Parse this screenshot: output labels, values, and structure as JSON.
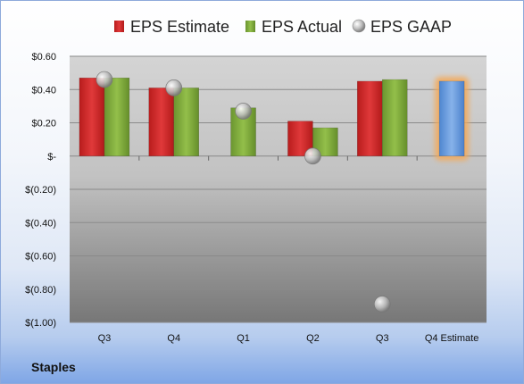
{
  "company": "Staples",
  "colors": {
    "estimate": "#d42a2a",
    "actual": "#7eaa3a",
    "gaap": "#b9b9b9",
    "future_estimate": "#6a9de0",
    "highlight": "#f5a957"
  },
  "chart_data": {
    "type": "bar",
    "title": "",
    "xlabel": "",
    "ylabel": "",
    "ylim": [
      -1.0,
      0.6
    ],
    "yticks": [
      0.6,
      0.4,
      0.2,
      0.0,
      -0.2,
      -0.4,
      -0.6,
      -0.8,
      -1.0
    ],
    "ytick_labels": [
      "$0.60",
      "$0.40",
      "$0.20",
      "$-",
      "$(0.20)",
      "$(0.40)",
      "$(0.60)",
      "$(0.80)",
      "$(1.00)"
    ],
    "categories": [
      "Q3",
      "Q4",
      "Q1",
      "Q2",
      "Q3",
      "Q4 Estimate"
    ],
    "legend_position": "top",
    "grid": true,
    "series": [
      {
        "name": "EPS Estimate",
        "kind": "bar",
        "values": [
          0.47,
          0.41,
          null,
          0.21,
          0.45,
          0.45
        ]
      },
      {
        "name": "EPS Actual",
        "kind": "bar",
        "values": [
          0.47,
          0.41,
          0.29,
          0.17,
          0.46,
          null
        ]
      },
      {
        "name": "EPS GAAP",
        "kind": "marker",
        "values": [
          0.46,
          0.41,
          0.27,
          0.0,
          -0.89,
          null
        ]
      }
    ]
  }
}
